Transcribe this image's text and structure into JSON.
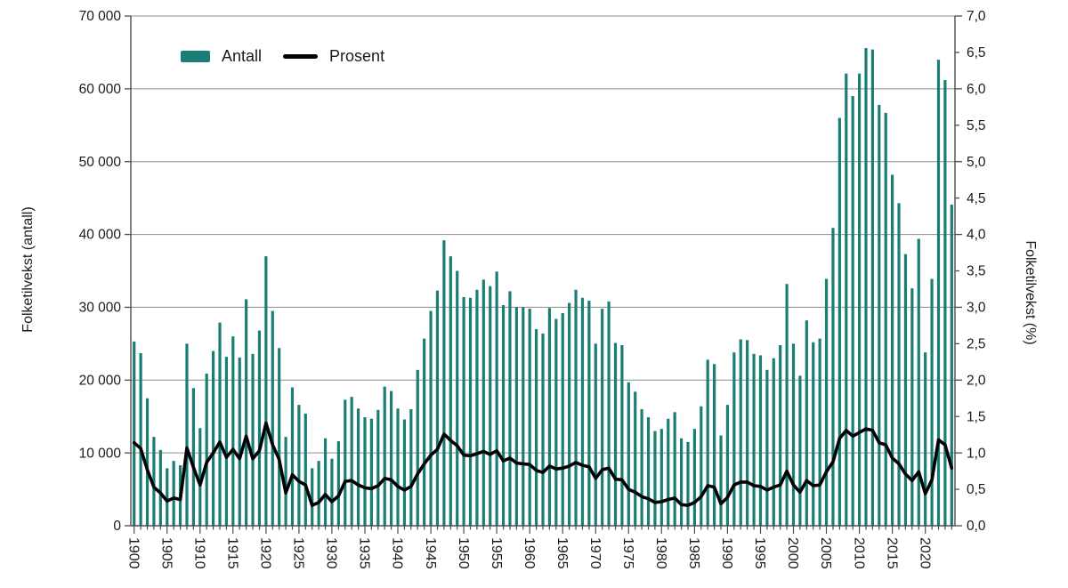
{
  "chart_data": {
    "type": "bar+line",
    "years": [
      1900,
      1901,
      1902,
      1903,
      1904,
      1905,
      1906,
      1907,
      1908,
      1909,
      1910,
      1911,
      1912,
      1913,
      1914,
      1915,
      1916,
      1917,
      1918,
      1919,
      1920,
      1921,
      1922,
      1923,
      1924,
      1925,
      1926,
      1927,
      1928,
      1929,
      1930,
      1931,
      1932,
      1933,
      1934,
      1935,
      1936,
      1937,
      1938,
      1939,
      1940,
      1941,
      1942,
      1943,
      1944,
      1945,
      1946,
      1947,
      1948,
      1949,
      1950,
      1951,
      1952,
      1953,
      1954,
      1955,
      1956,
      1957,
      1958,
      1959,
      1960,
      1961,
      1962,
      1963,
      1964,
      1965,
      1966,
      1967,
      1968,
      1969,
      1970,
      1971,
      1972,
      1973,
      1974,
      1975,
      1976,
      1977,
      1978,
      1979,
      1980,
      1981,
      1982,
      1983,
      1984,
      1985,
      1986,
      1987,
      1988,
      1989,
      1990,
      1991,
      1992,
      1993,
      1994,
      1995,
      1996,
      1997,
      1998,
      1999,
      2000,
      2001,
      2002,
      2003,
      2004,
      2005,
      2006,
      2007,
      2008,
      2009,
      2010,
      2011,
      2012,
      2013,
      2014,
      2015,
      2016,
      2017,
      2018,
      2019,
      2020,
      2021,
      2022,
      2023,
      2024
    ],
    "series": [
      {
        "name": "Antall",
        "type": "bar",
        "axis": "left",
        "color": "#1a7d76",
        "values": [
          25300,
          23700,
          17500,
          12200,
          10400,
          7900,
          8900,
          8300,
          25000,
          18900,
          13400,
          20900,
          24000,
          27900,
          23200,
          26000,
          23100,
          31100,
          23600,
          26800,
          37000,
          29500,
          24400,
          12200,
          19000,
          16600,
          15400,
          7900,
          8900,
          12000,
          9200,
          11600,
          17300,
          17700,
          16100,
          14900,
          14700,
          15900,
          19100,
          18500,
          16100,
          14600,
          16000,
          21400,
          25700,
          29500,
          32300,
          39200,
          37000,
          35000,
          31400,
          31300,
          32400,
          33800,
          32900,
          34900,
          30300,
          32200,
          30000,
          30000,
          29800,
          27000,
          26400,
          29900,
          28400,
          29200,
          30600,
          32400,
          31300,
          30900,
          25000,
          29800,
          30800,
          25100,
          24800,
          19700,
          18400,
          16000,
          14900,
          13000,
          13300,
          14700,
          15600,
          12000,
          11500,
          13300,
          16400,
          22800,
          22200,
          12400,
          16600,
          23800,
          25600,
          25500,
          23600,
          23400,
          21400,
          23000,
          24800,
          33200,
          25000,
          20600,
          28200,
          25200,
          25700,
          33900,
          40900,
          56000,
          62100,
          59000,
          62100,
          65600,
          65400,
          57800,
          56700,
          48200,
          44300,
          37300,
          32600,
          39400,
          23800,
          33900,
          64000,
          61200,
          44100
        ]
      },
      {
        "name": "Prosent",
        "type": "line",
        "axis": "right",
        "color": "#000000",
        "values": [
          1.14,
          1.06,
          0.77,
          0.53,
          0.45,
          0.34,
          0.38,
          0.36,
          1.07,
          0.8,
          0.56,
          0.87,
          1.0,
          1.15,
          0.94,
          1.05,
          0.92,
          1.23,
          0.92,
          1.03,
          1.41,
          1.11,
          0.91,
          0.45,
          0.7,
          0.61,
          0.56,
          0.28,
          0.32,
          0.43,
          0.33,
          0.41,
          0.61,
          0.62,
          0.56,
          0.52,
          0.51,
          0.55,
          0.65,
          0.63,
          0.54,
          0.49,
          0.54,
          0.71,
          0.85,
          0.97,
          1.05,
          1.26,
          1.17,
          1.1,
          0.97,
          0.96,
          0.99,
          1.02,
          0.98,
          1.03,
          0.89,
          0.93,
          0.86,
          0.85,
          0.84,
          0.76,
          0.73,
          0.82,
          0.78,
          0.79,
          0.82,
          0.87,
          0.83,
          0.81,
          0.65,
          0.77,
          0.79,
          0.64,
          0.63,
          0.5,
          0.46,
          0.4,
          0.37,
          0.32,
          0.33,
          0.36,
          0.38,
          0.29,
          0.28,
          0.32,
          0.4,
          0.55,
          0.53,
          0.3,
          0.39,
          0.56,
          0.6,
          0.6,
          0.55,
          0.54,
          0.49,
          0.53,
          0.56,
          0.75,
          0.56,
          0.46,
          0.62,
          0.55,
          0.56,
          0.74,
          0.88,
          1.2,
          1.31,
          1.23,
          1.28,
          1.33,
          1.31,
          1.14,
          1.11,
          0.93,
          0.85,
          0.71,
          0.62,
          0.74,
          0.44,
          0.63,
          1.18,
          1.11,
          0.79
        ]
      }
    ],
    "left_axis": {
      "title": "Folketilvekst (antall)",
      "min": 0,
      "max": 70000,
      "tick_step": 10000,
      "tick_labels": [
        "0",
        "10 000",
        "20 000",
        "30 000",
        "40 000",
        "50 000",
        "60 000",
        "70 000"
      ]
    },
    "right_axis": {
      "title": "Folketilvekst (%)",
      "min": 0,
      "max": 7,
      "tick_step": 0.5,
      "tick_labels": [
        "0,0",
        "0,5",
        "1,0",
        "1,5",
        "2,0",
        "2,5",
        "3,0",
        "3,5",
        "4,0",
        "4,5",
        "5,0",
        "5,5",
        "6,0",
        "6,5",
        "7,0"
      ]
    },
    "x_axis": {
      "label_start": 1900,
      "label_step": 5,
      "tick_labels": [
        "1900",
        "1905",
        "1910",
        "1915",
        "1920",
        "1925",
        "1930",
        "1935",
        "1940",
        "1945",
        "1950",
        "1955",
        "1960",
        "1965",
        "1970",
        "1975",
        "1980",
        "1985",
        "1990",
        "1995",
        "2000",
        "2005",
        "2010",
        "2015",
        "2020"
      ]
    },
    "legend": {
      "position": "top-left",
      "items": [
        "Antall",
        "Prosent"
      ]
    },
    "grid": "horizontal",
    "colors": {
      "bar": "#1a7d76",
      "line": "#000000",
      "gridline": "#8c8c8c",
      "axis": "#4d4d4d",
      "tick": "#4d4d4d",
      "text": "#1a1a1a",
      "background": "#ffffff"
    }
  }
}
